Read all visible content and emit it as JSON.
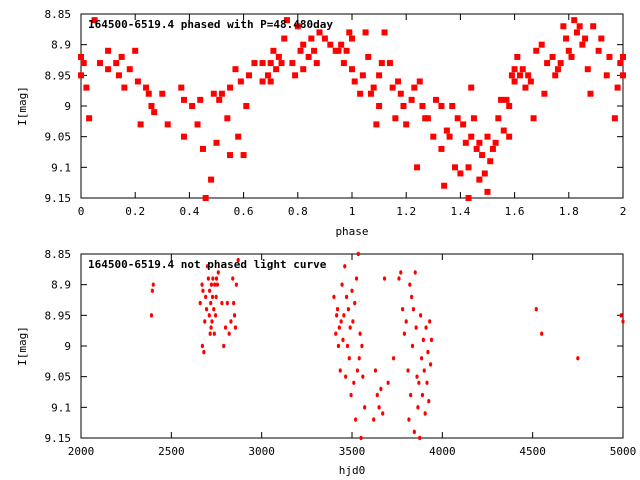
{
  "chart_data": [
    {
      "type": "scatter",
      "title": "164500-6519.4 phased with P=48.480day",
      "xlabel": "phase",
      "ylabel": "I[mag]",
      "xlim": [
        0,
        2
      ],
      "ylim": [
        8.85,
        9.15
      ],
      "y_inverted": true,
      "grid": false,
      "marker": "filled-square",
      "color": "#ff0000",
      "x_ticks": [
        "0",
        "0.2",
        "0.4",
        "0.6",
        "0.8",
        "1",
        "1.2",
        "1.4",
        "1.6",
        "1.8",
        "2"
      ],
      "y_ticks": [
        "8.85",
        "8.9",
        "8.95",
        "9",
        "9.05",
        "9.1",
        "9.15"
      ],
      "points": [
        [
          0.0,
          8.92
        ],
        [
          0.0,
          8.95
        ],
        [
          0.01,
          8.93
        ],
        [
          0.02,
          8.97
        ],
        [
          0.03,
          9.02
        ],
        [
          0.05,
          8.86
        ],
        [
          0.07,
          8.93
        ],
        [
          0.1,
          8.91
        ],
        [
          0.1,
          8.94
        ],
        [
          0.13,
          8.93
        ],
        [
          0.14,
          8.95
        ],
        [
          0.15,
          8.92
        ],
        [
          0.16,
          8.97
        ],
        [
          0.18,
          8.94
        ],
        [
          0.2,
          8.91
        ],
        [
          0.21,
          8.96
        ],
        [
          0.22,
          9.03
        ],
        [
          0.24,
          8.97
        ],
        [
          0.25,
          8.98
        ],
        [
          0.26,
          9.0
        ],
        [
          0.27,
          9.01
        ],
        [
          0.3,
          8.98
        ],
        [
          0.32,
          9.03
        ],
        [
          0.37,
          8.97
        ],
        [
          0.38,
          9.05
        ],
        [
          0.38,
          8.99
        ],
        [
          0.41,
          9.0
        ],
        [
          0.43,
          9.03
        ],
        [
          0.44,
          8.99
        ],
        [
          0.45,
          9.07
        ],
        [
          0.46,
          9.15
        ],
        [
          0.48,
          9.12
        ],
        [
          0.49,
          8.98
        ],
        [
          0.5,
          9.06
        ],
        [
          0.51,
          8.99
        ],
        [
          0.52,
          8.98
        ],
        [
          0.54,
          9.02
        ],
        [
          0.55,
          8.97
        ],
        [
          0.55,
          9.08
        ],
        [
          0.57,
          8.94
        ],
        [
          0.58,
          9.05
        ],
        [
          0.59,
          8.96
        ],
        [
          0.6,
          9.08
        ],
        [
          0.61,
          9.0
        ],
        [
          0.62,
          8.95
        ],
        [
          0.64,
          8.93
        ],
        [
          0.67,
          8.93
        ],
        [
          0.67,
          8.96
        ],
        [
          0.69,
          8.95
        ],
        [
          0.7,
          8.96
        ],
        [
          0.7,
          8.93
        ],
        [
          0.71,
          8.91
        ],
        [
          0.72,
          8.94
        ],
        [
          0.73,
          8.92
        ],
        [
          0.74,
          8.93
        ],
        [
          0.75,
          8.89
        ],
        [
          0.76,
          8.86
        ],
        [
          0.78,
          8.93
        ],
        [
          0.79,
          8.95
        ],
        [
          0.8,
          8.87
        ],
        [
          0.81,
          8.91
        ],
        [
          0.82,
          8.9
        ],
        [
          0.82,
          8.94
        ],
        [
          0.84,
          8.92
        ],
        [
          0.85,
          8.89
        ],
        [
          0.86,
          8.91
        ],
        [
          0.87,
          8.93
        ],
        [
          0.88,
          8.88
        ],
        [
          0.9,
          8.89
        ],
        [
          0.92,
          8.9
        ],
        [
          0.94,
          8.91
        ],
        [
          0.95,
          8.91
        ],
        [
          0.96,
          8.9
        ],
        [
          0.97,
          8.93
        ],
        [
          0.98,
          8.91
        ],
        [
          0.99,
          8.88
        ],
        [
          1.0,
          8.89
        ],
        [
          1.0,
          8.94
        ],
        [
          1.01,
          8.96
        ],
        [
          1.03,
          8.98
        ],
        [
          1.04,
          8.95
        ],
        [
          1.05,
          8.88
        ],
        [
          1.06,
          8.92
        ],
        [
          1.07,
          8.98
        ],
        [
          1.08,
          8.97
        ],
        [
          1.09,
          9.03
        ],
        [
          1.1,
          8.95
        ],
        [
          1.1,
          9.0
        ],
        [
          1.11,
          8.93
        ],
        [
          1.12,
          8.88
        ],
        [
          1.14,
          8.93
        ],
        [
          1.15,
          8.97
        ],
        [
          1.16,
          9.02
        ],
        [
          1.17,
          8.96
        ],
        [
          1.18,
          8.98
        ],
        [
          1.19,
          9.0
        ],
        [
          1.2,
          9.03
        ],
        [
          1.22,
          8.99
        ],
        [
          1.23,
          8.97
        ],
        [
          1.24,
          9.1
        ],
        [
          1.25,
          8.96
        ],
        [
          1.26,
          9.0
        ],
        [
          1.27,
          9.02
        ],
        [
          1.28,
          9.02
        ],
        [
          1.3,
          9.05
        ],
        [
          1.31,
          8.99
        ],
        [
          1.33,
          9.07
        ],
        [
          1.33,
          9.0
        ],
        [
          1.34,
          9.13
        ],
        [
          1.35,
          9.04
        ],
        [
          1.36,
          9.05
        ],
        [
          1.37,
          9.0
        ],
        [
          1.38,
          9.1
        ],
        [
          1.39,
          9.02
        ],
        [
          1.4,
          9.11
        ],
        [
          1.41,
          9.03
        ],
        [
          1.42,
          9.06
        ],
        [
          1.43,
          9.15
        ],
        [
          1.43,
          9.1
        ],
        [
          1.44,
          9.05
        ],
        [
          1.44,
          8.97
        ],
        [
          1.45,
          9.02
        ],
        [
          1.46,
          9.07
        ],
        [
          1.47,
          9.12
        ],
        [
          1.47,
          9.06
        ],
        [
          1.48,
          9.08
        ],
        [
          1.49,
          9.11
        ],
        [
          1.5,
          9.14
        ],
        [
          1.5,
          9.05
        ],
        [
          1.51,
          9.09
        ],
        [
          1.52,
          9.07
        ],
        [
          1.53,
          9.06
        ],
        [
          1.54,
          9.02
        ],
        [
          1.55,
          8.99
        ],
        [
          1.56,
          9.04
        ],
        [
          1.57,
          8.99
        ],
        [
          1.58,
          9.05
        ],
        [
          1.58,
          9.0
        ],
        [
          1.59,
          8.95
        ],
        [
          1.6,
          8.94
        ],
        [
          1.6,
          8.96
        ],
        [
          1.61,
          8.92
        ],
        [
          1.62,
          8.95
        ],
        [
          1.63,
          8.94
        ],
        [
          1.64,
          8.97
        ],
        [
          1.65,
          8.95
        ],
        [
          1.66,
          8.96
        ],
        [
          1.67,
          9.02
        ],
        [
          1.68,
          8.91
        ],
        [
          1.7,
          8.9
        ],
        [
          1.71,
          8.98
        ],
        [
          1.72,
          8.93
        ],
        [
          1.74,
          8.92
        ],
        [
          1.75,
          8.95
        ],
        [
          1.76,
          8.94
        ],
        [
          1.77,
          8.93
        ],
        [
          1.78,
          8.87
        ],
        [
          1.79,
          8.89
        ],
        [
          1.8,
          8.91
        ],
        [
          1.81,
          8.92
        ],
        [
          1.82,
          8.86
        ],
        [
          1.83,
          8.88
        ],
        [
          1.84,
          8.87
        ],
        [
          1.85,
          8.9
        ],
        [
          1.86,
          8.89
        ],
        [
          1.87,
          8.94
        ],
        [
          1.88,
          8.98
        ],
        [
          1.89,
          8.87
        ],
        [
          1.91,
          8.91
        ],
        [
          1.92,
          8.89
        ],
        [
          1.94,
          8.95
        ],
        [
          1.95,
          8.92
        ],
        [
          1.97,
          9.02
        ],
        [
          1.98,
          8.97
        ],
        [
          1.99,
          8.93
        ],
        [
          2.0,
          8.92
        ],
        [
          2.0,
          8.95
        ]
      ]
    },
    {
      "type": "scatter",
      "title": "164500-6519.4 not phased light curve",
      "xlabel": "hjd0",
      "ylabel": "I[mag]",
      "xlim": [
        2000,
        5000
      ],
      "ylim": [
        8.85,
        9.15
      ],
      "y_inverted": true,
      "grid": false,
      "marker": "small-dot",
      "color": "#ff0000",
      "x_ticks": [
        "2000",
        "2500",
        "3000",
        "3500",
        "4000",
        "4500",
        "5000"
      ],
      "y_ticks": [
        "8.85",
        "8.9",
        "8.95",
        "9",
        "9.05",
        "9.1",
        "9.15"
      ],
      "points": [
        [
          2390,
          8.95
        ],
        [
          2395,
          8.91
        ],
        [
          2400,
          8.9
        ],
        [
          2660,
          8.93
        ],
        [
          2670,
          8.9
        ],
        [
          2672,
          9.0
        ],
        [
          2675,
          8.91
        ],
        [
          2680,
          9.01
        ],
        [
          2685,
          8.96
        ],
        [
          2690,
          8.92
        ],
        [
          2695,
          8.94
        ],
        [
          2700,
          8.87
        ],
        [
          2705,
          8.89
        ],
        [
          2710,
          8.95
        ],
        [
          2712,
          8.91
        ],
        [
          2715,
          8.98
        ],
        [
          2718,
          8.93
        ],
        [
          2720,
          8.97
        ],
        [
          2722,
          8.9
        ],
        [
          2725,
          8.96
        ],
        [
          2728,
          8.92
        ],
        [
          2730,
          8.89
        ],
        [
          2735,
          8.94
        ],
        [
          2738,
          8.98
        ],
        [
          2740,
          8.9
        ],
        [
          2745,
          8.95
        ],
        [
          2748,
          8.92
        ],
        [
          2750,
          8.89
        ],
        [
          2755,
          8.9
        ],
        [
          2760,
          8.88
        ],
        [
          2780,
          8.93
        ],
        [
          2790,
          9.0
        ],
        [
          2800,
          8.97
        ],
        [
          2810,
          8.93
        ],
        [
          2820,
          8.98
        ],
        [
          2830,
          8.96
        ],
        [
          2840,
          8.89
        ],
        [
          2845,
          8.93
        ],
        [
          2850,
          8.95
        ],
        [
          2855,
          8.97
        ],
        [
          2860,
          8.9
        ],
        [
          2870,
          8.86
        ],
        [
          3400,
          8.92
        ],
        [
          3410,
          8.98
        ],
        [
          3415,
          8.95
        ],
        [
          3420,
          8.94
        ],
        [
          3425,
          9.0
        ],
        [
          3430,
          8.97
        ],
        [
          3435,
          9.04
        ],
        [
          3440,
          8.96
        ],
        [
          3445,
          8.9
        ],
        [
          3450,
          8.99
        ],
        [
          3455,
          8.95
        ],
        [
          3460,
          8.87
        ],
        [
          3465,
          9.05
        ],
        [
          3470,
          8.92
        ],
        [
          3475,
          9.0
        ],
        [
          3480,
          8.94
        ],
        [
          3485,
          9.02
        ],
        [
          3490,
          8.97
        ],
        [
          3495,
          9.08
        ],
        [
          3500,
          8.91
        ],
        [
          3505,
          8.96
        ],
        [
          3510,
          9.06
        ],
        [
          3515,
          8.93
        ],
        [
          3520,
          9.12
        ],
        [
          3525,
          8.89
        ],
        [
          3530,
          9.04
        ],
        [
          3535,
          8.85
        ],
        [
          3540,
          9.02
        ],
        [
          3545,
          8.98
        ],
        [
          3550,
          9.15
        ],
        [
          3555,
          9.0
        ],
        [
          3560,
          9.05
        ],
        [
          3570,
          9.1
        ],
        [
          3620,
          9.12
        ],
        [
          3630,
          9.04
        ],
        [
          3640,
          9.08
        ],
        [
          3650,
          9.1
        ],
        [
          3660,
          9.07
        ],
        [
          3670,
          9.11
        ],
        [
          3680,
          8.89
        ],
        [
          3700,
          9.06
        ],
        [
          3730,
          9.02
        ],
        [
          3760,
          8.89
        ],
        [
          3770,
          8.88
        ],
        [
          3780,
          8.94
        ],
        [
          3790,
          8.98
        ],
        [
          3800,
          8.96
        ],
        [
          3810,
          9.04
        ],
        [
          3815,
          9.12
        ],
        [
          3820,
          8.9
        ],
        [
          3825,
          9.08
        ],
        [
          3830,
          8.92
        ],
        [
          3835,
          9.0
        ],
        [
          3840,
          8.94
        ],
        [
          3845,
          9.14
        ],
        [
          3850,
          8.88
        ],
        [
          3855,
          8.97
        ],
        [
          3860,
          9.05
        ],
        [
          3865,
          9.1
        ],
        [
          3870,
          9.06
        ],
        [
          3875,
          9.15
        ],
        [
          3880,
          8.95
        ],
        [
          3885,
          9.02
        ],
        [
          3890,
          9.08
        ],
        [
          3895,
          8.99
        ],
        [
          3900,
          9.04
        ],
        [
          3905,
          9.11
        ],
        [
          3910,
          8.97
        ],
        [
          3915,
          9.06
        ],
        [
          3920,
          9.01
        ],
        [
          3925,
          9.09
        ],
        [
          3930,
          8.96
        ],
        [
          3935,
          9.03
        ],
        [
          3940,
          8.99
        ],
        [
          4520,
          8.94
        ],
        [
          4550,
          8.98
        ],
        [
          4750,
          9.02
        ],
        [
          4990,
          8.95
        ],
        [
          5000,
          8.96
        ]
      ]
    }
  ]
}
